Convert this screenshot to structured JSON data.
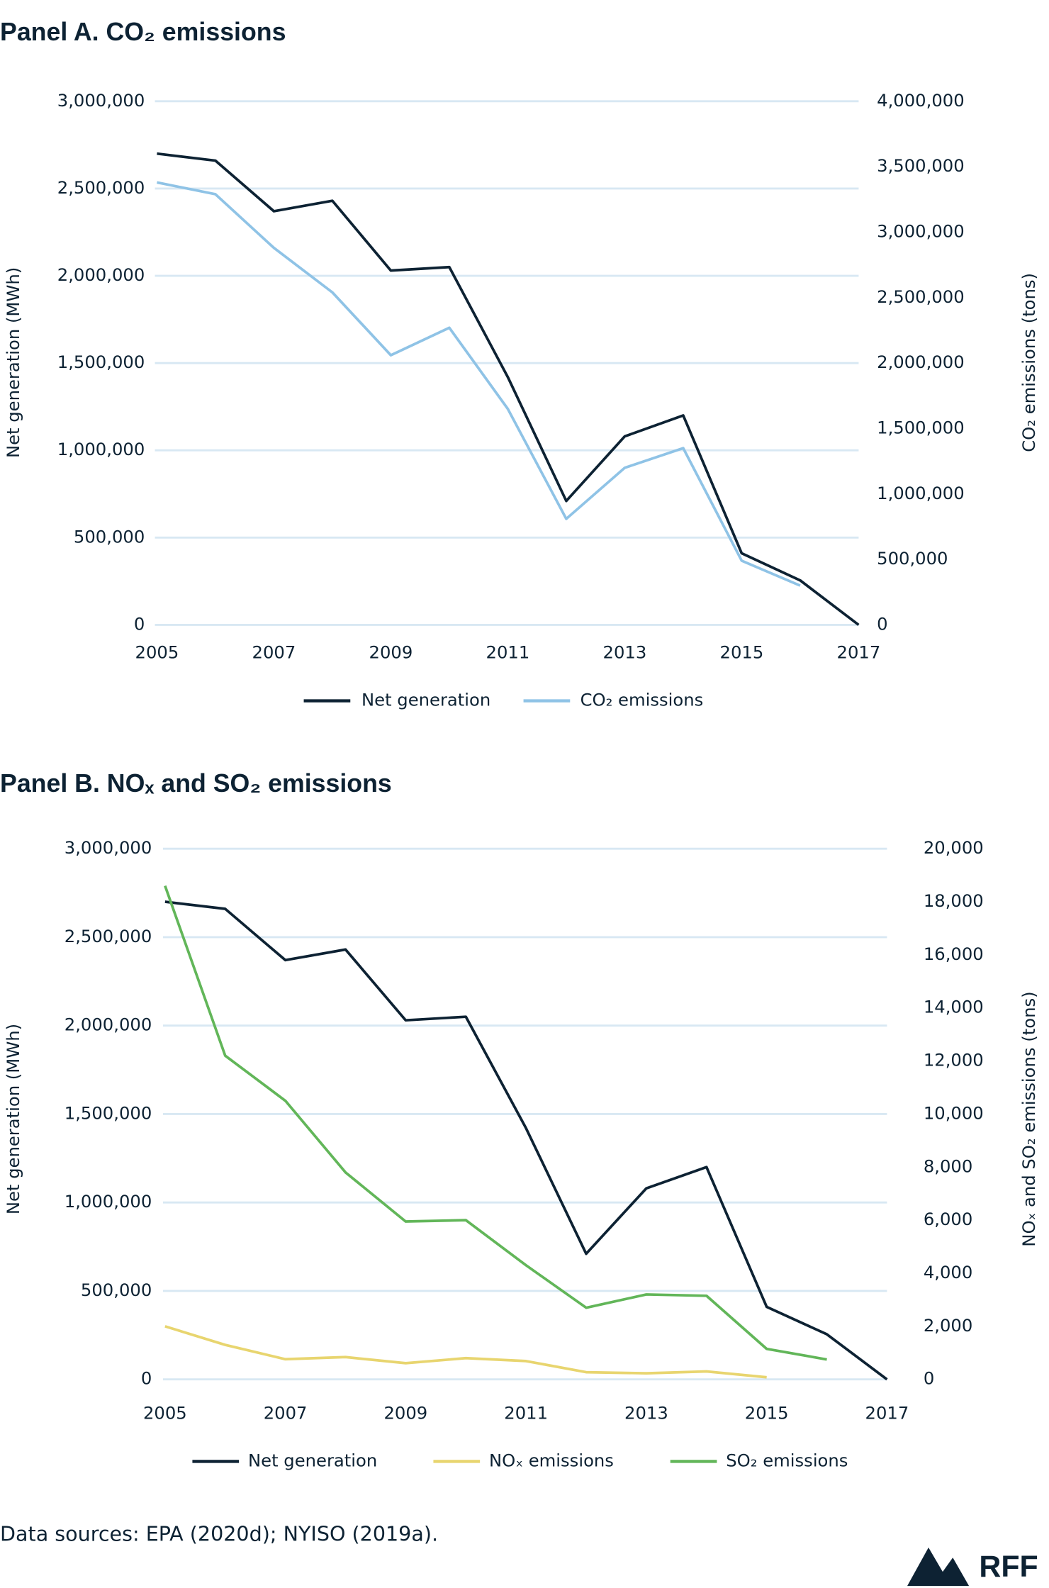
{
  "chart_data": [
    {
      "type": "line",
      "title": "Panel A.  CO₂ emissions",
      "y_label": "Net generation (MWh)",
      "y2_label": "CO₂ emissions (tons)",
      "x": [
        2005,
        2006,
        2007,
        2008,
        2009,
        2010,
        2011,
        2012,
        2013,
        2014,
        2015,
        2016,
        2017
      ],
      "xlim": [
        2005,
        2017
      ],
      "xticks": [
        2005,
        2007,
        2009,
        2011,
        2013,
        2015,
        2017
      ],
      "ylim": [
        0,
        3000000
      ],
      "yticks": [
        0,
        {
          "value": 500000,
          "label": "500,000"
        },
        {
          "value": 1000000,
          "label": "1,000,000"
        },
        {
          "value": 1500000,
          "label": "1,500,000"
        },
        {
          "value": 2000000,
          "label": "2,000,000"
        },
        {
          "value": 2500000,
          "label": "2,500,000"
        },
        {
          "value": 3000000,
          "label": "3,000,000"
        }
      ],
      "y2lim": [
        0,
        4000000
      ],
      "y2ticks": [
        0,
        {
          "value": 500000,
          "label": "500,000"
        },
        {
          "value": 1000000,
          "label": "1,000,000"
        },
        {
          "value": 1500000,
          "label": "1,500,000"
        },
        {
          "value": 2000000,
          "label": "2,000,000"
        },
        {
          "value": 2500000,
          "label": "2,500,000"
        },
        {
          "value": 3000000,
          "label": "3,000,000"
        },
        {
          "value": 3500000,
          "label": "3,500,000"
        },
        {
          "value": 4000000,
          "label": "4,000,000"
        }
      ],
      "grid": true,
      "series": [
        {
          "name": "Net generation",
          "color": "#0d2233",
          "values": [
            2700000,
            2660000,
            2370000,
            2430000,
            2030000,
            2050000,
            1420000,
            710000,
            1080000,
            1200000,
            410000,
            255000,
            0
          ]
        },
        {
          "name": "CO₂ emissions",
          "color": "#8fc3e6",
          "axis": "y2",
          "values": [
            3380000,
            3290000,
            2880000,
            2540000,
            2060000,
            2270000,
            1650000,
            810000,
            1200000,
            1350000,
            490000,
            300000,
            null
          ]
        }
      ]
    },
    {
      "type": "line",
      "title": "Panel B.  NOₓ and SO₂ emissions",
      "y_label": "Net generation (MWh)",
      "y2_label": "NOₓ and SO₂ emissions (tons)",
      "x": [
        2005,
        2006,
        2007,
        2008,
        2009,
        2010,
        2011,
        2012,
        2013,
        2014,
        2015,
        2016,
        2017
      ],
      "xlim": [
        2005,
        2017
      ],
      "xticks": [
        2005,
        2007,
        2009,
        2011,
        2013,
        2015,
        2017
      ],
      "ylim": [
        0,
        3000000
      ],
      "yticks": [
        0,
        {
          "value": 500000,
          "label": "500,000"
        },
        {
          "value": 1000000,
          "label": "1,000,000"
        },
        {
          "value": 1500000,
          "label": "1,500,000"
        },
        {
          "value": 2000000,
          "label": "2,000,000"
        },
        {
          "value": 2500000,
          "label": "2,500,000"
        },
        {
          "value": 3000000,
          "label": "3,000,000"
        }
      ],
      "y2lim": [
        0,
        20000
      ],
      "y2ticks": [
        0,
        {
          "value": 2000,
          "label": "2,000"
        },
        {
          "value": 4000,
          "label": "4,000"
        },
        {
          "value": 6000,
          "label": "6,000"
        },
        {
          "value": 8000,
          "label": "8,000"
        },
        {
          "value": 10000,
          "label": "10,000"
        },
        {
          "value": 12000,
          "label": "12,000"
        },
        {
          "value": 14000,
          "label": "14,000"
        },
        {
          "value": 16000,
          "label": "16,000"
        },
        {
          "value": 18000,
          "label": "18,000"
        },
        {
          "value": 20000,
          "label": "20,000"
        }
      ],
      "grid": true,
      "series": [
        {
          "name": "Net generation",
          "color": "#0d2233",
          "values": [
            2700000,
            2660000,
            2370000,
            2430000,
            2030000,
            2050000,
            1420000,
            710000,
            1080000,
            1200000,
            410000,
            255000,
            0
          ]
        },
        {
          "name": "NOₓ emissions",
          "color": "#e8d56f",
          "axis": "y2",
          "values": [
            2000,
            1300,
            760,
            840,
            610,
            800,
            690,
            270,
            230,
            300,
            80,
            null,
            null
          ]
        },
        {
          "name": "SO₂ emissions",
          "color": "#62b659",
          "axis": "y2",
          "values": [
            18600,
            12200,
            10500,
            7800,
            5950,
            6000,
            4300,
            2700,
            3200,
            3150,
            1150,
            750,
            null
          ]
        }
      ]
    }
  ],
  "source": "Data sources: EPA (2020d); NYISO (2019a).",
  "logo": "RFF"
}
